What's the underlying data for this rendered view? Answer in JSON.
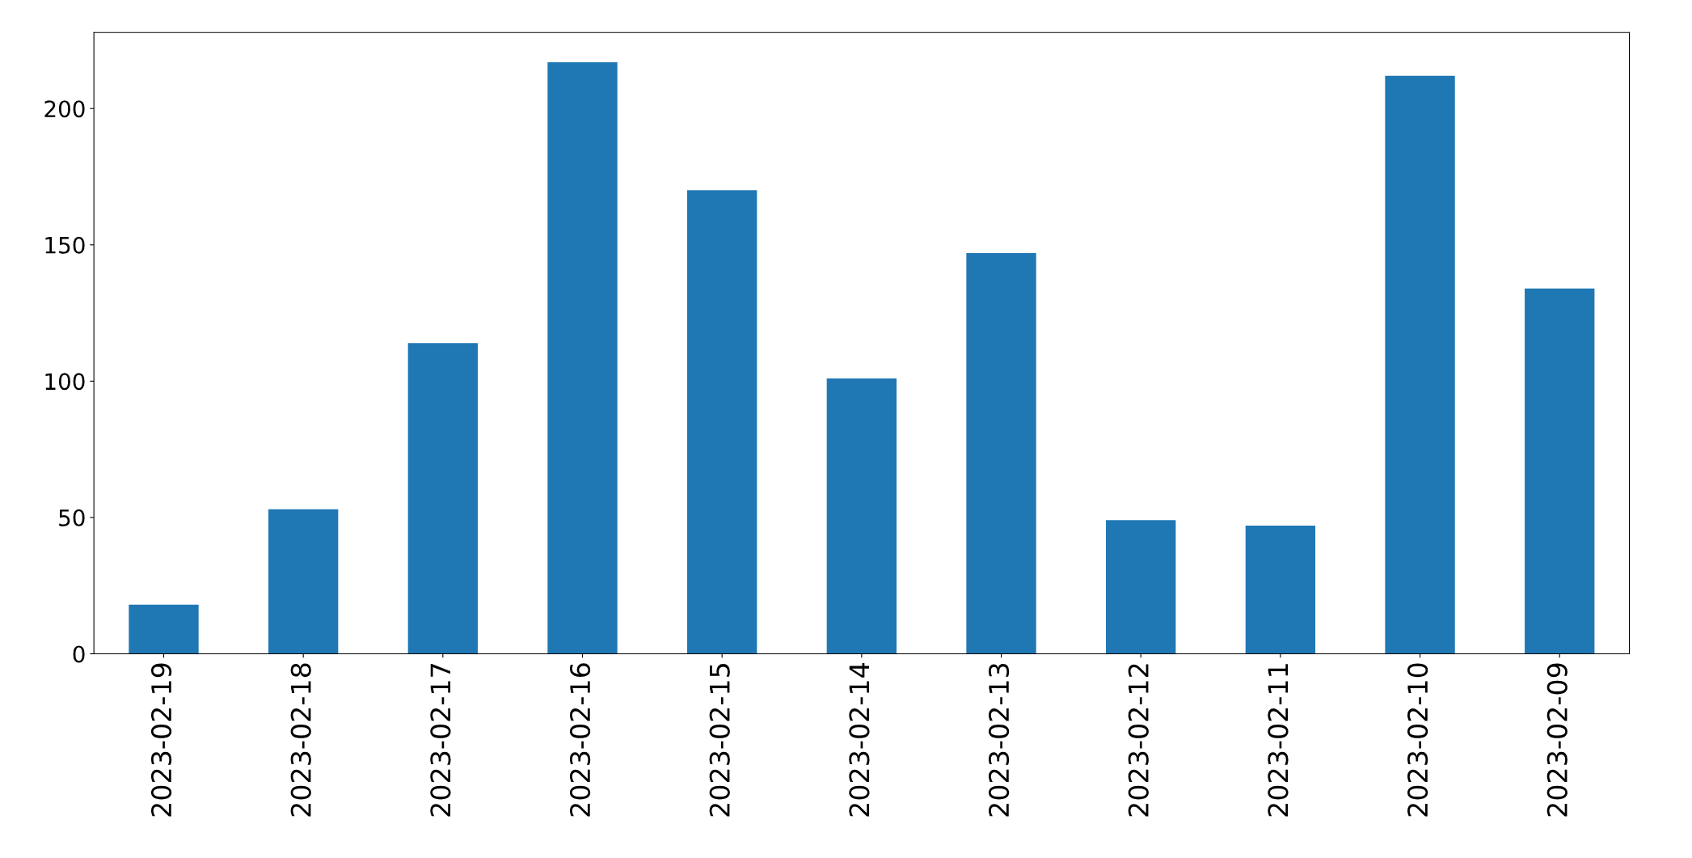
{
  "chart_data": {
    "type": "bar",
    "categories": [
      "2023-02-19",
      "2023-02-18",
      "2023-02-17",
      "2023-02-16",
      "2023-02-15",
      "2023-02-14",
      "2023-02-13",
      "2023-02-12",
      "2023-02-11",
      "2023-02-10",
      "2023-02-09"
    ],
    "values": [
      18,
      53,
      114,
      217,
      170,
      101,
      147,
      49,
      47,
      212,
      134
    ],
    "color": "#1f77b4",
    "ylim": [
      0,
      227.85
    ],
    "yticks": [
      0,
      50,
      100,
      150,
      200
    ],
    "grid": false
  }
}
